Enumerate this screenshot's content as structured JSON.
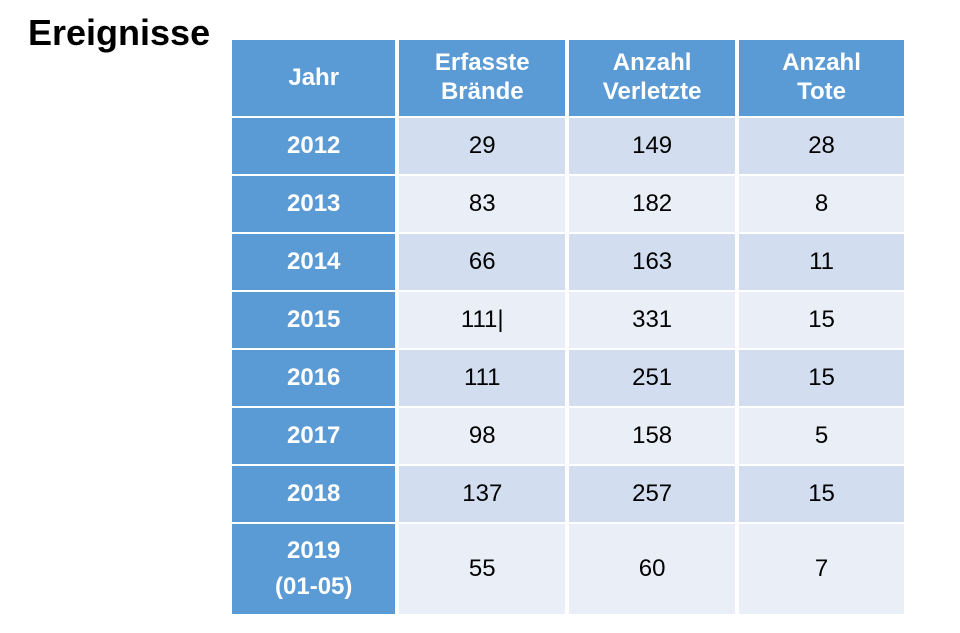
{
  "title": "Ereignisse",
  "table": {
    "type": "table",
    "header_bg": "#5b9bd5",
    "header_color": "#ffffff",
    "row_odd_bg": "#d2deef",
    "row_even_bg": "#eaeff7",
    "year_col_bg": "#5b9bd5",
    "year_col_color": "#ffffff",
    "data_color": "#000000",
    "header_fontsize": 24,
    "data_fontsize": 24,
    "columns": [
      "Jahr",
      "Erfasste\nBrände",
      "Anzahl\nVerletzte",
      "Anzahl\nTote"
    ],
    "rows": [
      {
        "year": "2012",
        "braende": "29",
        "verletzte": "149",
        "tote": "28"
      },
      {
        "year": "2013",
        "braende": "83",
        "verletzte": "182",
        "tote": "8"
      },
      {
        "year": "2014",
        "braende": "66",
        "verletzte": "163",
        "tote": "11"
      },
      {
        "year": "2015",
        "braende": "111|",
        "verletzte": "331",
        "tote": "15"
      },
      {
        "year": "2016",
        "braende": "111",
        "verletzte": "251",
        "tote": "15"
      },
      {
        "year": "2017",
        "braende": "98",
        "verletzte": "158",
        "tote": "5"
      },
      {
        "year": "2018",
        "braende": "137",
        "verletzte": "257",
        "tote": "15"
      },
      {
        "year": "2019\n(01-05)",
        "braende": "55",
        "verletzte": "60",
        "tote": "7"
      }
    ]
  }
}
